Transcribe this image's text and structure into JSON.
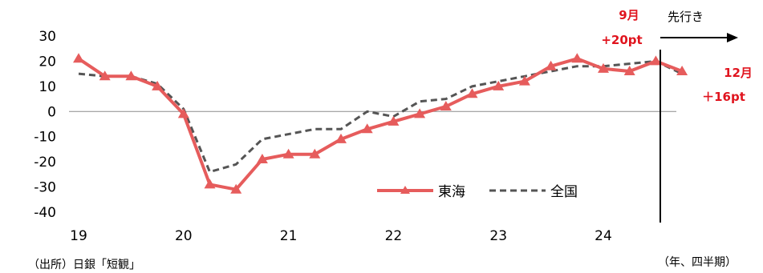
{
  "chart_data": {
    "type": "line",
    "title": "",
    "xlabel": "",
    "ylabel": "",
    "ylim": [
      -40,
      30
    ],
    "y_ticks": [
      "30",
      "20",
      "10",
      "0",
      "-10",
      "-20",
      "-30",
      "-40"
    ],
    "x_tick_labels": [
      "19",
      "20",
      "21",
      "22",
      "23",
      "24"
    ],
    "x_unit_label": "（年、四半期）",
    "source_note": "（出所）日銀「短観」",
    "forecast_label": "先行き",
    "series": [
      {
        "name": "東海",
        "style": "solid-triangle",
        "color": "#e65c5c",
        "values": [
          21,
          14,
          14,
          10,
          -1,
          -29,
          -31,
          -19,
          -17,
          -17,
          -11,
          -7,
          -4,
          -1,
          2,
          7,
          10,
          12,
          18,
          21,
          17,
          16,
          20,
          16
        ]
      },
      {
        "name": "全国",
        "style": "dashed",
        "color": "#555555",
        "values": [
          15,
          14,
          14,
          11,
          1,
          -24,
          -21,
          -11,
          -9,
          -7,
          -7,
          0,
          -2,
          4,
          5,
          10,
          12,
          14,
          16,
          18,
          18,
          19,
          20,
          15
        ]
      }
    ],
    "annotations": {
      "sep_label": "9月",
      "sep_value": "+20pt",
      "dec_label": "12月",
      "dec_value": "＋16pt"
    },
    "grid": false,
    "legend_position": "bottom-right"
  }
}
